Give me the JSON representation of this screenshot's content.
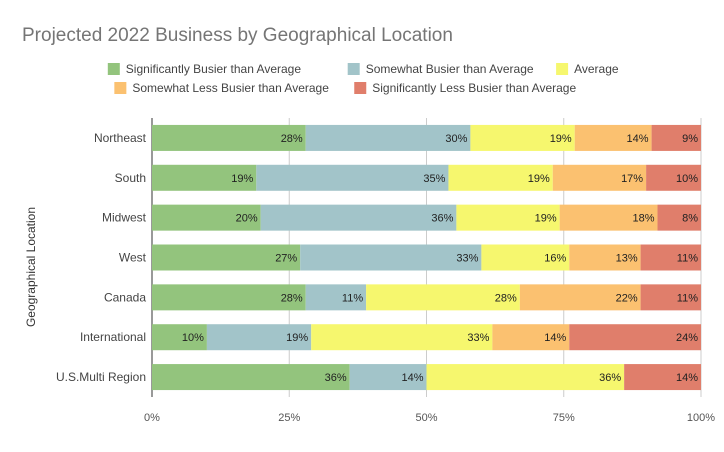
{
  "chart_data": {
    "type": "bar",
    "orientation": "horizontal",
    "stacked": "percent",
    "title": "Projected 2022 Business by Geographical Location",
    "ylabel": "Geographical Location",
    "xlabel": "",
    "xlim": [
      0,
      100
    ],
    "x_ticks": [
      "0%",
      "25%",
      "50%",
      "75%",
      "100%"
    ],
    "grid": true,
    "legend_position": "top",
    "categories": [
      "Northeast",
      "South",
      "Midwest",
      "West",
      "Canada",
      "International",
      "U.S.Multi Region"
    ],
    "series": [
      {
        "name": "Significantly Busier than Average",
        "color": "#93c47d",
        "values": [
          28,
          19,
          20,
          27,
          28,
          10,
          36
        ],
        "labels": [
          "28%",
          "19%",
          "20%",
          "27%",
          "28%",
          "10%",
          "36%"
        ]
      },
      {
        "name": "Somewhat Busier than Average",
        "color": "#a2c4c9",
        "values": [
          30,
          35,
          36,
          33,
          11,
          19,
          14
        ],
        "labels": [
          "30%",
          "35%",
          "36%",
          "33%",
          "11%",
          "19%",
          "14%"
        ]
      },
      {
        "name": "Average",
        "color": "#f6f76e",
        "values": [
          19,
          19,
          19,
          16,
          28,
          33,
          36
        ],
        "labels": [
          "19%",
          "19%",
          "19%",
          "16%",
          "28%",
          "33%",
          "36%"
        ]
      },
      {
        "name": "Somewhat Less Busier than Average",
        "color": "#fbc170",
        "values": [
          14,
          17,
          18,
          13,
          22,
          14,
          0
        ],
        "labels": [
          "14%",
          "17%",
          "18%",
          "13%",
          "22%",
          "14%",
          "0%"
        ]
      },
      {
        "name": "Significantly Less Busier than Average",
        "color": "#e07e6b",
        "values": [
          9,
          10,
          8,
          11,
          11,
          24,
          14
        ],
        "labels": [
          "9%",
          "10%",
          "8%",
          "11%",
          "11%",
          "24%",
          "14%"
        ]
      }
    ]
  }
}
